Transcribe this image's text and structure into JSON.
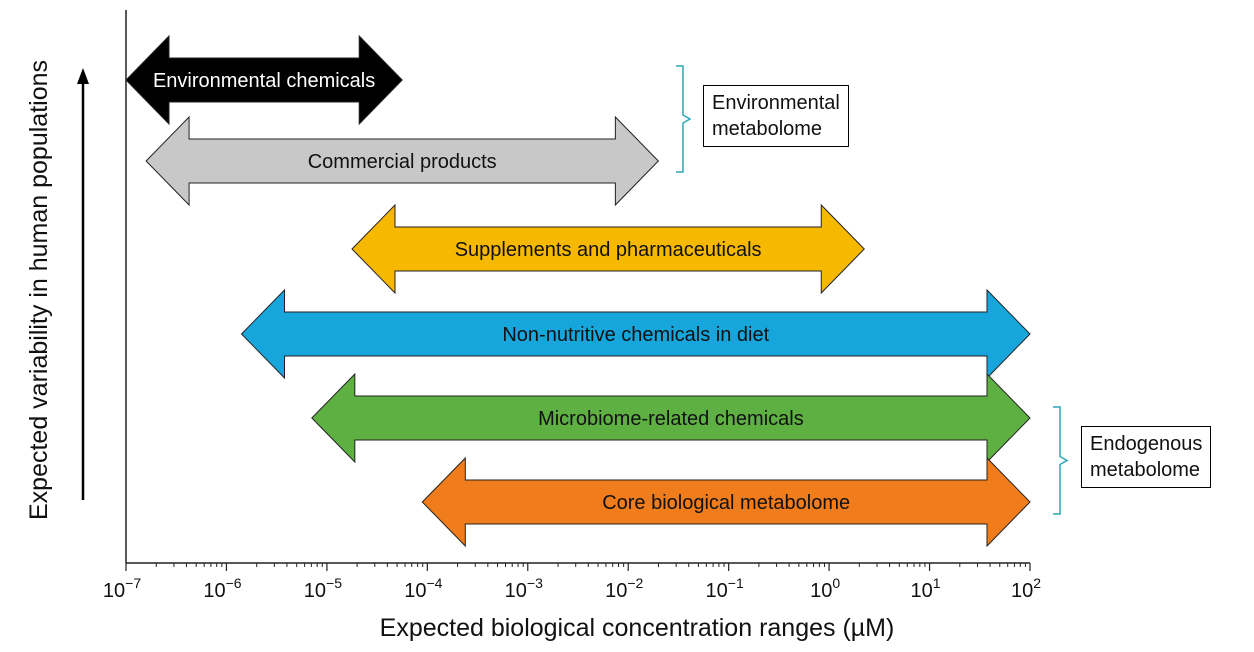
{
  "chart_data": {
    "type": "range",
    "x_scale": "log10",
    "xlim": [
      -7,
      2
    ],
    "x_ticks": [
      {
        "exp": -7,
        "base": "10",
        "sup": "−7"
      },
      {
        "exp": -6,
        "base": "10",
        "sup": "−6"
      },
      {
        "exp": -5,
        "base": "10",
        "sup": "−5"
      },
      {
        "exp": -4,
        "base": "10",
        "sup": "−4"
      },
      {
        "exp": -3,
        "base": "10",
        "sup": "−3"
      },
      {
        "exp": -2,
        "base": "10",
        "sup": "−2"
      },
      {
        "exp": -1,
        "base": "10",
        "sup": "−1"
      },
      {
        "exp": 0,
        "base": "10",
        "sup": "0"
      },
      {
        "exp": 1,
        "base": "10",
        "sup": "1"
      },
      {
        "exp": 2,
        "base": "10",
        "sup": "2"
      }
    ],
    "xlabel": "Expected biological concentration ranges (µM)",
    "ylabel": "Expected variability in human populations",
    "series": [
      {
        "label": "Environmental chemicals",
        "x_from_exp": -7.0,
        "x_to_exp": -4.25,
        "color": "#000000",
        "text_color": "#ffffff"
      },
      {
        "label": "Commercial products",
        "x_from_exp": -6.8,
        "x_to_exp": -1.7,
        "color": "#c8c8c8",
        "text_color": "#111111"
      },
      {
        "label": "Supplements and pharmaceuticals",
        "x_from_exp": -4.75,
        "x_to_exp": 0.35,
        "color": "#f7b800",
        "text_color": "#111111"
      },
      {
        "label": "Non-nutritive chemicals in diet",
        "x_from_exp": -5.85,
        "x_to_exp": 2.0,
        "color": "#17a6dc",
        "text_color": "#111111"
      },
      {
        "label": "Microbiome-related chemicals",
        "x_from_exp": -5.15,
        "x_to_exp": 2.0,
        "color": "#5fb043",
        "text_color": "#111111"
      },
      {
        "label": "Core biological metabolome",
        "x_from_exp": -4.05,
        "x_to_exp": 2.0,
        "color": "#f07c1c",
        "text_color": "#111111"
      }
    ],
    "groups": [
      {
        "lines": [
          "Environmental",
          "metabolome"
        ],
        "bracket_color": "#2aa6b5"
      },
      {
        "lines": [
          "Endogenous",
          "metabolome"
        ],
        "bracket_color": "#2aa6b5"
      }
    ]
  }
}
